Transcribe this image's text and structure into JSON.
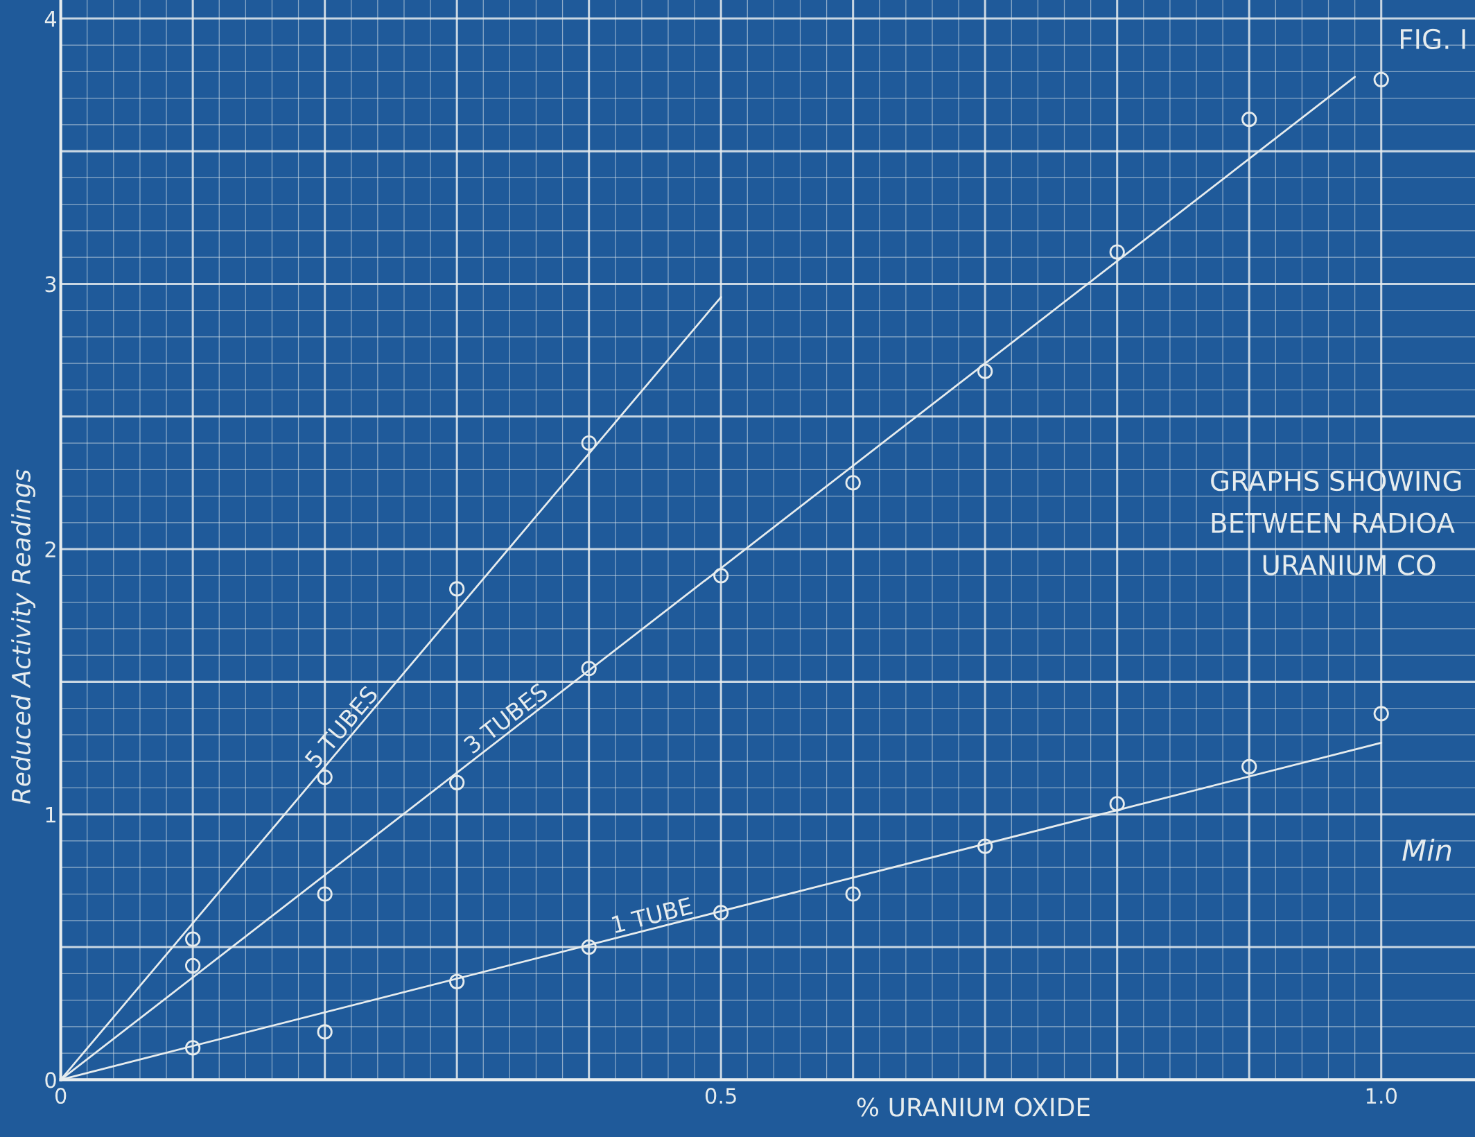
{
  "chart_data": {
    "type": "line",
    "title": "FIG. I",
    "xlabel": "% URANIUM OXIDE",
    "ylabel": "Reduced Activity Readings",
    "annotations": [
      "GRAPHS SHOWING",
      "BETWEEN RADIOA",
      "URANIUM CO",
      "Min"
    ],
    "series": [
      {
        "name": "5 TUBES",
        "color": "#e6ecee",
        "x": [
          0,
          0.5
        ],
        "values": [
          0,
          2.95
        ]
      },
      {
        "name": "3 TUBES",
        "color": "#e6ecee",
        "x": [
          0,
          0.98
        ],
        "values": [
          0,
          3.78
        ]
      },
      {
        "name": "1 TUBE",
        "color": "#e6ecee",
        "x": [
          0,
          1.0
        ],
        "values": [
          0,
          1.27
        ]
      },
      {
        "type": "scatter",
        "color": "#e6ecee",
        "marker": "circle",
        "x": [
          0.1,
          0.2,
          0.3,
          0.4
        ],
        "values": [
          0.53,
          1.14,
          1.85,
          2.4
        ]
      },
      {
        "type": "scatter",
        "color": "#e6ecee",
        "marker": "circle",
        "x": [
          0.1,
          0.2,
          0.3,
          0.4,
          0.5,
          0.6,
          0.7,
          0.8,
          0.9,
          1.0
        ],
        "values": [
          0.43,
          0.7,
          1.12,
          1.55,
          1.9,
          2.25,
          2.67,
          3.12,
          3.62,
          3.77
        ]
      },
      {
        "type": "scatter",
        "color": "#e6ecee",
        "marker": "circle",
        "x": [
          0.1,
          0.2,
          0.3,
          0.4,
          0.5,
          0.6,
          0.7,
          0.8,
          0.9,
          1.0
        ],
        "values": [
          0.12,
          0.18,
          0.37,
          0.5,
          0.63,
          0.7,
          0.88,
          1.04,
          1.18,
          1.38
        ]
      }
    ],
    "xlim": [
      -0.046,
      1.071
    ],
    "ylim": [
      -0.216,
      4.07
    ],
    "xticks": [
      0,
      {
        "value": 0.1,
        "label": null
      },
      {
        "value": 0.2,
        "label": null
      },
      {
        "value": 0.3,
        "label": null
      },
      {
        "value": 0.4,
        "label": null
      },
      {
        "value": 0.5,
        "label": "0.5"
      },
      {
        "value": 0.6,
        "label": null
      },
      {
        "value": 0.7,
        "label": null
      },
      {
        "value": 0.8,
        "label": null
      },
      {
        "value": 0.9,
        "label": null
      },
      {
        "value": 1.0,
        "label": "1.0"
      }
    ],
    "yticks": [
      0,
      {
        "value": 0.5,
        "label": null
      },
      1,
      {
        "value": 1.5,
        "label": null
      },
      2,
      {
        "value": 2.5,
        "label": null
      },
      3,
      {
        "value": 3.5,
        "label": null
      },
      4
    ],
    "grid": true,
    "legend": false
  }
}
